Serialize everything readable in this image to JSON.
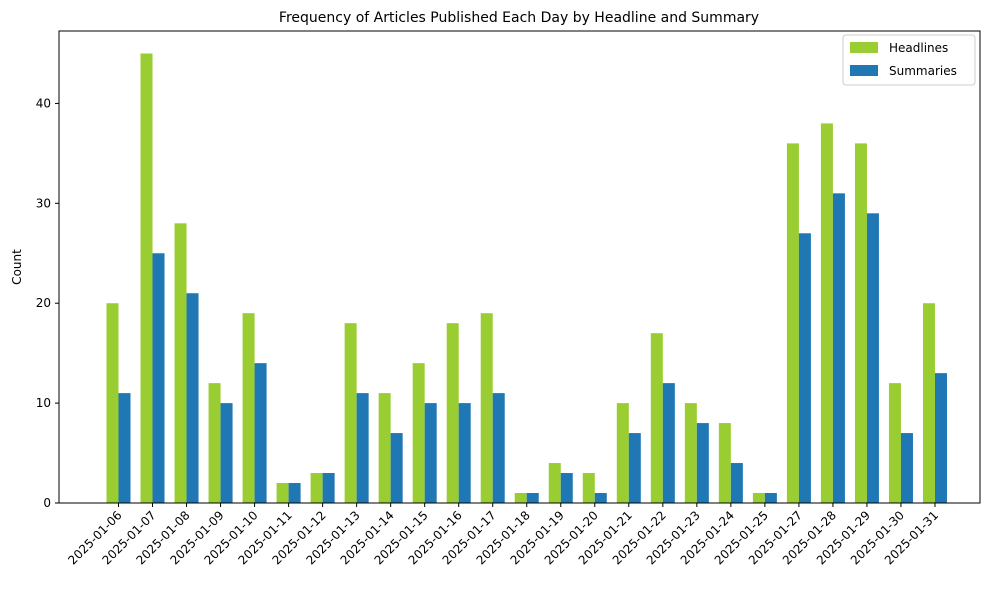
{
  "chart_data": {
    "type": "bar",
    "title": "Frequency of Articles Published Each Day by Headline and Summary",
    "xlabel": "",
    "ylabel": "Count",
    "ylim": [
      0,
      47.25
    ],
    "yticks": [
      0,
      10,
      20,
      30,
      40
    ],
    "grid": false,
    "legend_position": "top-right",
    "categories": [
      "2025-01-06",
      "2025-01-07",
      "2025-01-08",
      "2025-01-09",
      "2025-01-10",
      "2025-01-11",
      "2025-01-12",
      "2025-01-13",
      "2025-01-14",
      "2025-01-15",
      "2025-01-16",
      "2025-01-17",
      "2025-01-18",
      "2025-01-19",
      "2025-01-20",
      "2025-01-21",
      "2025-01-22",
      "2025-01-23",
      "2025-01-24",
      "2025-01-25",
      "2025-01-27",
      "2025-01-28",
      "2025-01-29",
      "2025-01-30",
      "2025-01-31"
    ],
    "series": [
      {
        "name": "Headlines",
        "color": "#9acd32",
        "values": [
          20,
          45,
          28,
          12,
          19,
          2,
          3,
          18,
          11,
          14,
          18,
          19,
          1,
          4,
          3,
          10,
          17,
          10,
          8,
          1,
          36,
          38,
          36,
          12,
          20
        ]
      },
      {
        "name": "Summaries",
        "color": "#1f77b4",
        "values": [
          11,
          25,
          21,
          10,
          14,
          2,
          3,
          11,
          7,
          10,
          10,
          11,
          1,
          3,
          1,
          7,
          12,
          8,
          4,
          1,
          27,
          31,
          29,
          7,
          13
        ]
      }
    ]
  }
}
